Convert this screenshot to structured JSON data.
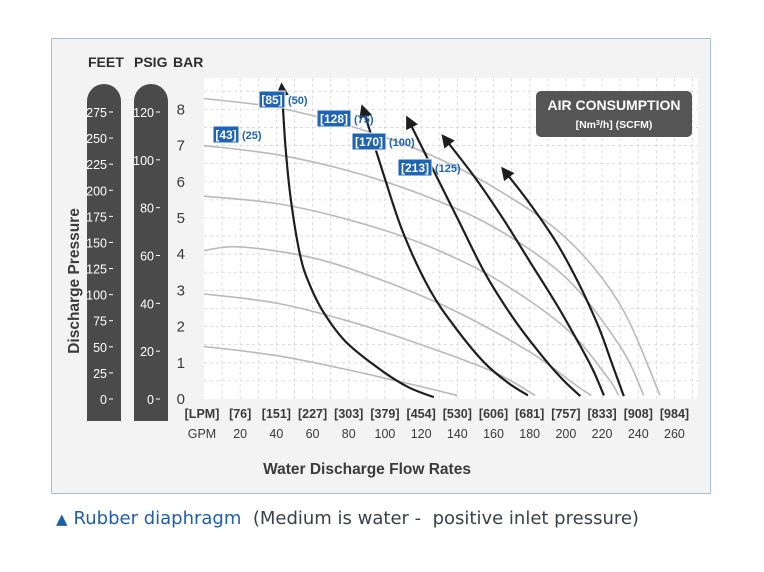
{
  "chart_data": {
    "type": "line",
    "title": "",
    "xlabel": "Water Discharge Flow Rates",
    "ylabel": "Discharge Pressure",
    "xlim": [
      0,
      273
    ],
    "ylim": [
      0,
      8.7
    ],
    "grid": true,
    "x_gpm_ticks": [
      20,
      40,
      60,
      80,
      100,
      120,
      140,
      160,
      180,
      200,
      220,
      240,
      260
    ],
    "x_gpm_label": "GPM",
    "x_lpm_label": "[LPM]",
    "x_lpm_ticks": [
      "[76]",
      "[151]",
      "[227]",
      "[303]",
      "[379]",
      "[454]",
      "[530]",
      "[606]",
      "[681]",
      "[757]",
      "[833]",
      "[908]",
      "[984]"
    ],
    "y_bar_ticks": [
      0,
      1,
      2,
      3,
      4,
      5,
      6,
      7,
      8
    ],
    "y_psig_ticks": [
      "0",
      "20",
      "40",
      "60",
      "80",
      "100",
      "120"
    ],
    "y_feet_ticks": [
      "0",
      "25",
      "50",
      "75",
      "100",
      "125",
      "150",
      "175",
      "200",
      "225",
      "250",
      "275"
    ],
    "unit_headers": {
      "feet": "FEET",
      "psig": "PSIG",
      "bar": "BAR"
    },
    "air_consumption_box": {
      "title": "AIR CONSUMPTION",
      "subtitle_pre": "[Nm",
      "subtitle_sup": "3",
      "subtitle_post": "/h] (SCFM)"
    },
    "series": [
      {
        "name_metric": "[43]",
        "name_imperial": "(25)",
        "points": [
          [
            43,
            8.6
          ],
          [
            45,
            7.0
          ],
          [
            48,
            5.5
          ],
          [
            53,
            4.0
          ],
          [
            58,
            3.2
          ],
          [
            66,
            2.4
          ],
          [
            78,
            1.6
          ],
          [
            95,
            0.9
          ],
          [
            112,
            0.35
          ],
          [
            127,
            0.05
          ]
        ]
      },
      {
        "name_metric": "[85]",
        "name_imperial": "(50)",
        "points": [
          [
            88,
            8.0
          ],
          [
            98,
            6.4
          ],
          [
            110,
            4.6
          ],
          [
            125,
            3.0
          ],
          [
            140,
            1.9
          ],
          [
            155,
            1.0
          ],
          [
            168,
            0.45
          ],
          [
            179,
            0.1
          ]
        ]
      },
      {
        "name_metric": "[128]",
        "name_imperial": "(75)",
        "points": [
          [
            113,
            7.7
          ],
          [
            125,
            6.5
          ],
          [
            140,
            5.0
          ],
          [
            155,
            3.5
          ],
          [
            170,
            2.3
          ],
          [
            185,
            1.3
          ],
          [
            198,
            0.55
          ],
          [
            208,
            0.08
          ]
        ]
      },
      {
        "name_metric": "[170]",
        "name_imperial": "(100)",
        "points": [
          [
            133,
            7.2
          ],
          [
            150,
            6.1
          ],
          [
            165,
            5.0
          ],
          [
            180,
            3.8
          ],
          [
            195,
            2.6
          ],
          [
            207,
            1.55
          ],
          [
            215,
            0.8
          ],
          [
            221,
            0.1
          ]
        ]
      },
      {
        "name_metric": "[213]",
        "name_imperial": "(125)",
        "points": [
          [
            166,
            6.3
          ],
          [
            180,
            5.4
          ],
          [
            195,
            4.3
          ],
          [
            207,
            3.2
          ],
          [
            218,
            2.0
          ],
          [
            226,
            0.9
          ],
          [
            232,
            0.08
          ]
        ]
      }
    ],
    "air_curves": [
      {
        "points": [
          [
            0,
            8.3
          ],
          [
            40,
            8.05
          ],
          [
            80,
            7.55
          ],
          [
            120,
            6.85
          ],
          [
            160,
            5.85
          ],
          [
            200,
            4.45
          ],
          [
            230,
            2.6
          ],
          [
            252,
            0.1
          ]
        ]
      },
      {
        "points": [
          [
            0,
            7.0
          ],
          [
            40,
            6.75
          ],
          [
            80,
            6.3
          ],
          [
            120,
            5.65
          ],
          [
            160,
            4.75
          ],
          [
            200,
            3.35
          ],
          [
            230,
            1.45
          ],
          [
            243,
            0.1
          ]
        ]
      },
      {
        "points": [
          [
            0,
            5.6
          ],
          [
            40,
            5.4
          ],
          [
            80,
            4.95
          ],
          [
            120,
            4.3
          ],
          [
            160,
            3.35
          ],
          [
            200,
            1.95
          ],
          [
            223,
            0.6
          ],
          [
            229,
            0.1
          ]
        ]
      },
      {
        "points": [
          [
            0,
            4.1
          ],
          [
            20,
            4.2
          ],
          [
            60,
            3.9
          ],
          [
            100,
            3.25
          ],
          [
            140,
            2.4
          ],
          [
            180,
            1.3
          ],
          [
            205,
            0.4
          ],
          [
            214,
            0.1
          ]
        ]
      },
      {
        "points": [
          [
            0,
            2.9
          ],
          [
            40,
            2.65
          ],
          [
            80,
            2.15
          ],
          [
            120,
            1.5
          ],
          [
            160,
            0.75
          ],
          [
            183,
            0.1
          ]
        ]
      },
      {
        "points": [
          [
            0,
            1.45
          ],
          [
            40,
            1.2
          ],
          [
            80,
            0.8
          ],
          [
            115,
            0.4
          ],
          [
            140,
            0.1
          ]
        ]
      }
    ]
  },
  "caption": {
    "symbol": "▲",
    "main": "Rubber diaphragm",
    "detail": "  (Medium is water -  positive inlet pressure)"
  },
  "colors": {
    "pump_curve": "#1e1e1e",
    "air_curve": "#b9b9b9",
    "label_bg": "#1f63b5",
    "bar_fill": "#4a4a4a",
    "box_fill": "#555555",
    "accent": "#1f5fa8"
  }
}
